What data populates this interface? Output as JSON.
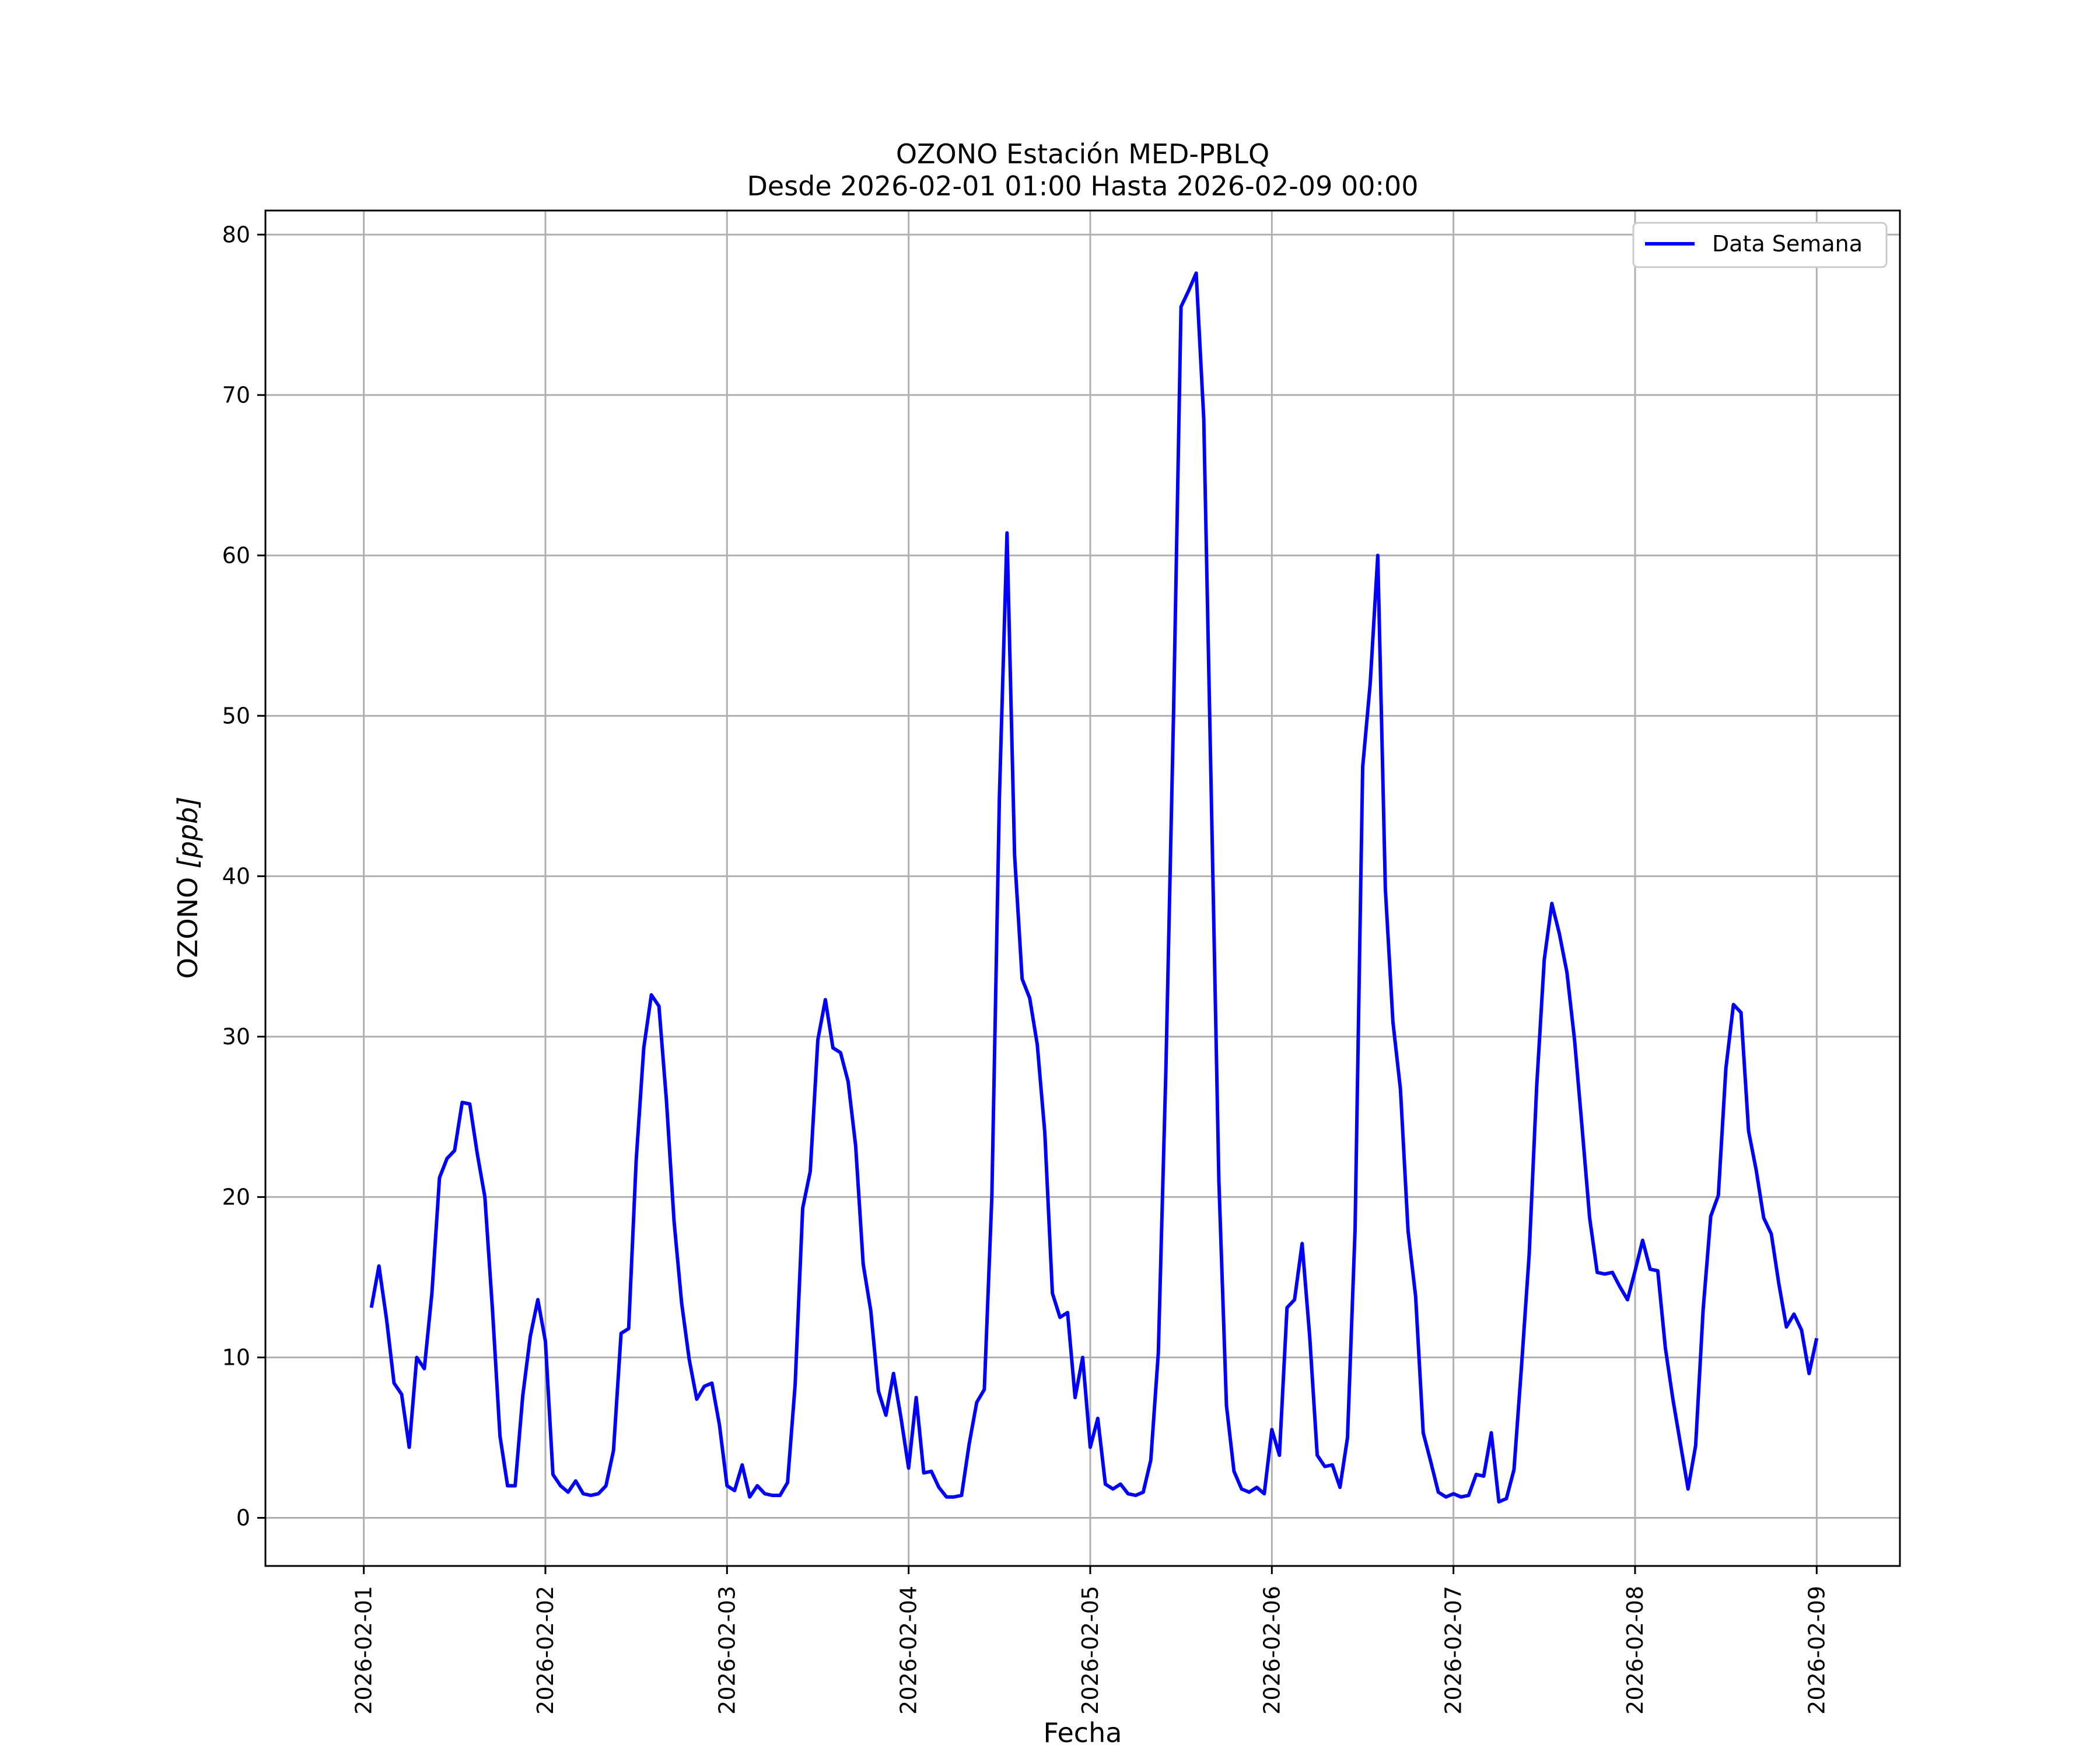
{
  "chart_data": {
    "type": "line",
    "title": "OZONO Estación MED-PBLQ",
    "subtitle": "Desde 2026-02-01 01:00 Hasta 2026-02-09 00:00",
    "xlabel": "Fecha",
    "ylabel_text": "OZONO ",
    "ylabel_unit": "[ppb]",
    "x_start": "2026-02-01 01:00",
    "x_end": "2026-02-09 00:00",
    "xlim": [
      "2026-01-31 11:00",
      "2026-02-09 11:00"
    ],
    "ylim": [
      -3,
      81.5
    ],
    "y_ticks": [
      0,
      10,
      20,
      30,
      40,
      50,
      60,
      70,
      80
    ],
    "x_ticks": [
      "2026-02-01",
      "2026-02-02",
      "2026-02-03",
      "2026-02-04",
      "2026-02-05",
      "2026-02-06",
      "2026-02-07",
      "2026-02-08",
      "2026-02-09"
    ],
    "grid": true,
    "legend": "top-right",
    "series": [
      {
        "name": "Data Semana",
        "color": "#0000ff",
        "values": [
          13.1,
          15.7,
          12.4,
          8.4,
          7.7,
          4.4,
          10.0,
          9.3,
          14.0,
          21.2,
          22.4,
          22.9,
          25.9,
          25.8,
          22.7,
          20.0,
          13.0,
          5.1,
          2.0,
          2.0,
          7.6,
          11.3,
          13.6,
          11.0,
          2.7,
          2.0,
          1.6,
          2.3,
          1.5,
          1.4,
          1.5,
          2.0,
          4.2,
          11.5,
          11.8,
          22.3,
          29.3,
          32.6,
          31.9,
          26.0,
          18.5,
          13.4,
          9.9,
          7.4,
          8.2,
          8.4,
          5.8,
          2.0,
          1.7,
          3.3,
          1.3,
          2.0,
          1.5,
          1.4,
          1.4,
          2.2,
          8.3,
          19.3,
          21.6,
          29.8,
          32.3,
          29.3,
          29.0,
          27.2,
          23.2,
          15.8,
          12.9,
          7.9,
          6.4,
          9.0,
          6.2,
          3.1,
          7.5,
          2.8,
          2.9,
          1.9,
          1.3,
          1.3,
          1.4,
          4.6,
          7.2,
          8.0,
          20.0,
          45.0,
          61.4,
          41.3,
          33.6,
          32.4,
          29.5,
          24.0,
          14.0,
          12.5,
          12.8,
          7.5,
          10.0,
          4.4,
          6.2,
          2.1,
          1.8,
          2.1,
          1.5,
          1.4,
          1.6,
          3.6,
          10.3,
          28.0,
          50.0,
          75.5,
          76.5,
          77.6,
          68.5,
          45.0,
          21.0,
          7.0,
          2.9,
          1.8,
          1.6,
          1.9,
          1.5,
          5.5,
          3.9,
          13.1,
          13.6,
          17.1,
          11.3,
          3.9,
          3.2,
          3.3,
          1.9,
          5.0,
          18.0,
          46.8,
          52.0,
          60.0,
          39.2,
          30.9,
          26.7,
          17.9,
          13.8,
          5.3,
          3.5,
          1.6,
          1.3,
          1.5,
          1.3,
          1.4,
          2.7,
          2.6,
          5.3,
          1.0,
          1.2,
          3.0,
          9.5,
          16.4,
          26.9,
          34.8,
          38.3,
          36.4,
          34.0,
          29.8,
          24.3,
          18.7,
          15.3,
          15.2,
          15.3,
          14.4,
          13.6,
          15.4,
          17.3,
          15.5,
          15.4,
          10.6,
          7.4,
          4.6,
          1.8,
          4.5,
          13.0,
          18.8,
          20.1,
          28.0,
          32.0,
          31.5,
          24.1,
          21.7,
          18.7,
          17.7,
          14.6,
          11.9,
          12.7,
          11.7,
          9.0,
          11.2
        ]
      }
    ]
  }
}
